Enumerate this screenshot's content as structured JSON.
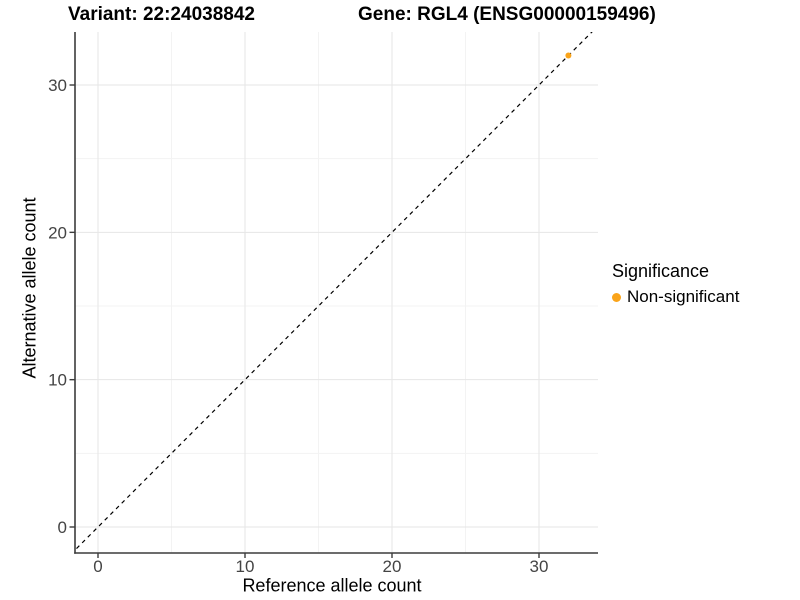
{
  "figure": {
    "titles": {
      "variant": "Variant: 22:24038842",
      "gene": "Gene: RGL4 (ENSG00000159496)"
    },
    "x_axis": {
      "title": "Reference allele count",
      "tick_labels": [
        "0",
        "10",
        "20",
        "30"
      ]
    },
    "y_axis": {
      "title": "Alternative allele count",
      "tick_labels": [
        "0",
        "10",
        "20",
        "30"
      ]
    },
    "legend": {
      "title": "Significance",
      "items": [
        {
          "label": "Non-significant",
          "color": "#FAA41A"
        }
      ]
    }
  },
  "colors": {
    "background": "#FFFFFF",
    "point": "#FAA41A",
    "grid_major": "#E6E6E6",
    "grid_minor": "#F3F3F3",
    "axis": "#3C3C3C",
    "tick_label": "#444444",
    "dashed_line": "#000000"
  },
  "chart_data": {
    "type": "scatter",
    "title": "Variant: 22:24038842 | Gene: RGL4 (ENSG00000159496)",
    "xlabel": "Reference allele count",
    "ylabel": "Alternative allele count",
    "xlim": [
      -1.6,
      34
    ],
    "ylim": [
      -1.8,
      33.6
    ],
    "x_ticks": [
      0,
      10,
      20,
      30
    ],
    "y_ticks": [
      0,
      10,
      20,
      30
    ],
    "x_minor_ticks": [
      5,
      15,
      25
    ],
    "y_minor_ticks": [
      5,
      15,
      25
    ],
    "grid": "major+minor",
    "legend_position": "right",
    "series": [
      {
        "name": "Non-significant",
        "color": "#FAA41A",
        "point_radius": 3,
        "points": [
          [
            32,
            32
          ]
        ]
      }
    ],
    "reference_line": {
      "kind": "identity y=x",
      "style": "dashed",
      "color": "#000000"
    }
  }
}
